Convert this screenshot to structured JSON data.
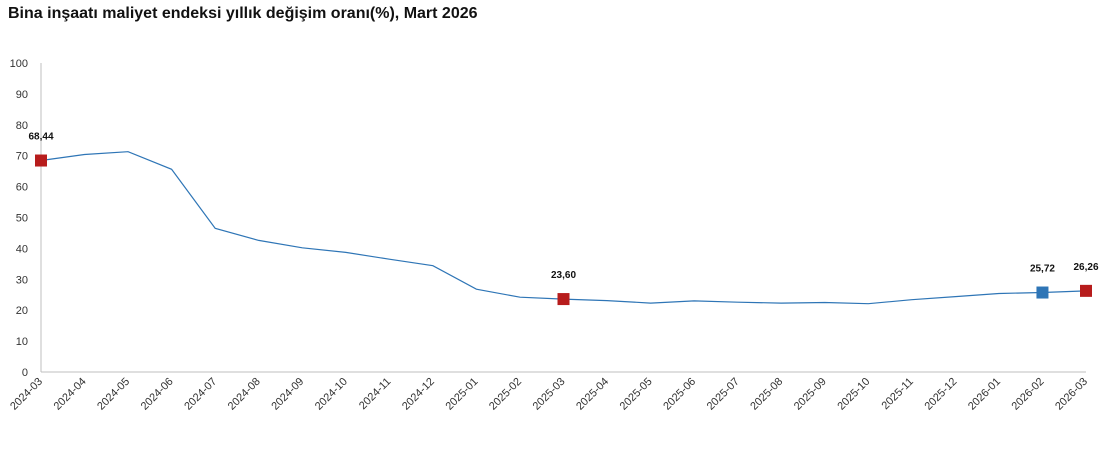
{
  "chart_data": {
    "type": "line",
    "title": "Bina inşaatı maliyet endeksi yıllık değişim oranı(%), Mart 2026",
    "xlabel": "",
    "ylabel": "",
    "ylim": [
      0,
      100
    ],
    "yticks": [
      0,
      10,
      20,
      30,
      40,
      50,
      60,
      70,
      80,
      90,
      100
    ],
    "grid": false,
    "categories": [
      "2024-03",
      "2024-04",
      "2024-05",
      "2024-06",
      "2024-07",
      "2024-08",
      "2024-09",
      "2024-10",
      "2024-11",
      "2024-12",
      "2025-01",
      "2025-02",
      "2025-03",
      "2025-04",
      "2025-05",
      "2025-06",
      "2025-07",
      "2025-08",
      "2025-09",
      "2025-10",
      "2025-11",
      "2025-12",
      "2026-01",
      "2026-02",
      "2026-03"
    ],
    "series": [
      {
        "values": [
          68.44,
          70.4,
          71.3,
          65.6,
          46.5,
          42.6,
          40.2,
          38.7,
          36.5,
          34.4,
          26.8,
          24.2,
          23.6,
          23.1,
          22.3,
          23.0,
          22.6,
          22.3,
          22.5,
          22.1,
          23.4,
          24.4,
          25.4,
          25.72,
          26.26
        ]
      }
    ],
    "highlighted_points": [
      {
        "index": 0,
        "label": "68,44",
        "color": "#b71c1c"
      },
      {
        "index": 12,
        "label": "23,60",
        "color": "#b71c1c"
      },
      {
        "index": 23,
        "label": "25,72",
        "color": "#2e75b6"
      },
      {
        "index": 24,
        "label": "26,26",
        "color": "#b71c1c"
      }
    ],
    "colors": {
      "line": "#2e75b6",
      "axis": "#bfbfbf",
      "text": "#111111"
    }
  }
}
